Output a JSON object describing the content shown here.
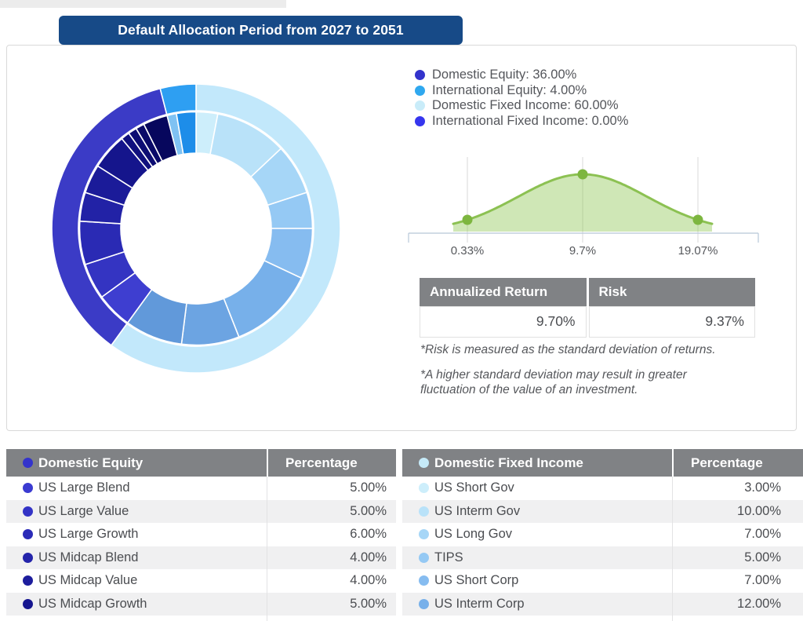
{
  "header": {
    "title": "Default Allocation Period from 2027 to 2051"
  },
  "legend": {
    "items": [
      {
        "label": "Domestic Equity: 36.00%",
        "color": "#3333cc"
      },
      {
        "label": "International Equity: 4.00%",
        "color": "#2fa8ef"
      },
      {
        "label": "Domestic Fixed Income: 60.00%",
        "color": "#c9ecf9"
      },
      {
        "label": "International Fixed Income: 0.00%",
        "color": "#3636ee"
      }
    ]
  },
  "risk_table": {
    "columns": [
      "Annualized Return",
      "Risk"
    ],
    "values": [
      "9.70%",
      "9.37%"
    ]
  },
  "footnotes": [
    "*Risk is measured as the standard deviation of returns.",
    "*A higher standard deviation may result in greater fluctuation of the value of an investment."
  ],
  "equity_table": {
    "header": {
      "label": "Domestic Equity",
      "dot_color": "#3333cc"
    },
    "percentage_header": "Percentage",
    "rows": [
      {
        "label": "US Large Blend",
        "value": "5.00%",
        "dot_color": "#3b3bd1"
      },
      {
        "label": "US Large Value",
        "value": "5.00%",
        "dot_color": "#3333c6"
      },
      {
        "label": "US Large Growth",
        "value": "6.00%",
        "dot_color": "#2b2bb8"
      },
      {
        "label": "US Midcap Blend",
        "value": "4.00%",
        "dot_color": "#2424aa"
      },
      {
        "label": "US Midcap Value",
        "value": "4.00%",
        "dot_color": "#1d1d9d"
      },
      {
        "label": "US Midcap Growth",
        "value": "5.00%",
        "dot_color": "#161690"
      }
    ]
  },
  "fixed_income_table": {
    "header": {
      "label": "Domestic Fixed Income",
      "dot_color": "#c5eaf8"
    },
    "percentage_header": "Percentage",
    "rows": [
      {
        "label": "US Short Gov",
        "value": "3.00%",
        "dot_color": "#cdeefb"
      },
      {
        "label": "US Interm Gov",
        "value": "10.00%",
        "dot_color": "#b9e2f9"
      },
      {
        "label": "US Long Gov",
        "value": "7.00%",
        "dot_color": "#a6d6f7"
      },
      {
        "label": "TIPS",
        "value": "5.00%",
        "dot_color": "#95c9f4"
      },
      {
        "label": "US Short Corp",
        "value": "7.00%",
        "dot_color": "#86bcf0"
      },
      {
        "label": "US Interm Corp",
        "value": "12.00%",
        "dot_color": "#77b0ea"
      }
    ]
  },
  "chart_data": [
    {
      "type": "pie",
      "subtype": "sunburst-donut",
      "legend_position": "right",
      "rings": {
        "outer": [
          {
            "label": "Domestic Fixed Income",
            "value": 60,
            "color": "#c2e8fb"
          },
          {
            "label": "Domestic Equity",
            "value": 36,
            "color": "#3b3bc6"
          },
          {
            "label": "International Equity",
            "value": 4,
            "color": "#2e9ff2"
          }
        ],
        "inner": [
          {
            "label": "US Short Gov",
            "value": 3,
            "color": "#cdeefb"
          },
          {
            "label": "US Interm Gov",
            "value": 10,
            "color": "#b9e2f9"
          },
          {
            "label": "US Long Gov",
            "value": 7,
            "color": "#a6d6f7"
          },
          {
            "label": "TIPS",
            "value": 5,
            "color": "#95c9f4"
          },
          {
            "label": "US Short Corp",
            "value": 7,
            "color": "#86bcf0"
          },
          {
            "label": "US Interm Corp",
            "value": 12,
            "color": "#77b0ea"
          },
          {
            "label": "",
            "value": 8,
            "color": "#6ca4e2"
          },
          {
            "label": "",
            "value": 8,
            "color": "#6199da"
          },
          {
            "label": "US Large Blend",
            "value": 5,
            "color": "#3e3ed0"
          },
          {
            "label": "US Large Value",
            "value": 5,
            "color": "#3434c2"
          },
          {
            "label": "US Large Growth",
            "value": 6,
            "color": "#2a2ab4"
          },
          {
            "label": "US Midcap Blend",
            "value": 4,
            "color": "#2222a6"
          },
          {
            "label": "US Midcap Value",
            "value": 4,
            "color": "#1b1b99"
          },
          {
            "label": "US Midcap Growth",
            "value": 5,
            "color": "#15158c"
          },
          {
            "label": "",
            "value": 1.2,
            "color": "#10107e"
          },
          {
            "label": "",
            "value": 1.2,
            "color": "#0d0d73"
          },
          {
            "label": "",
            "value": 1.2,
            "color": "#0a0a68"
          },
          {
            "label": "",
            "value": 3.4,
            "color": "#07075d"
          },
          {
            "label": "",
            "value": 1.3,
            "color": "#7fc2f3"
          },
          {
            "label": "",
            "value": 2.7,
            "color": "#1d8de9"
          }
        ]
      }
    },
    {
      "type": "area",
      "subtype": "normal-distribution",
      "x_tick_labels": [
        "0.33%",
        "9.7%",
        "19.07%"
      ],
      "markers": [
        0.33,
        9.7,
        19.07
      ],
      "mean": 9.7,
      "std_dev": 9.37,
      "curve_color": "#8cc152",
      "fill_color": "rgba(141,198,82,0.42)",
      "marker_color": "#7db63f",
      "gridline_color": "#d9d9d9",
      "axis_color": "#b7c8d8",
      "label_color": "#56585c",
      "grid": true
    }
  ]
}
